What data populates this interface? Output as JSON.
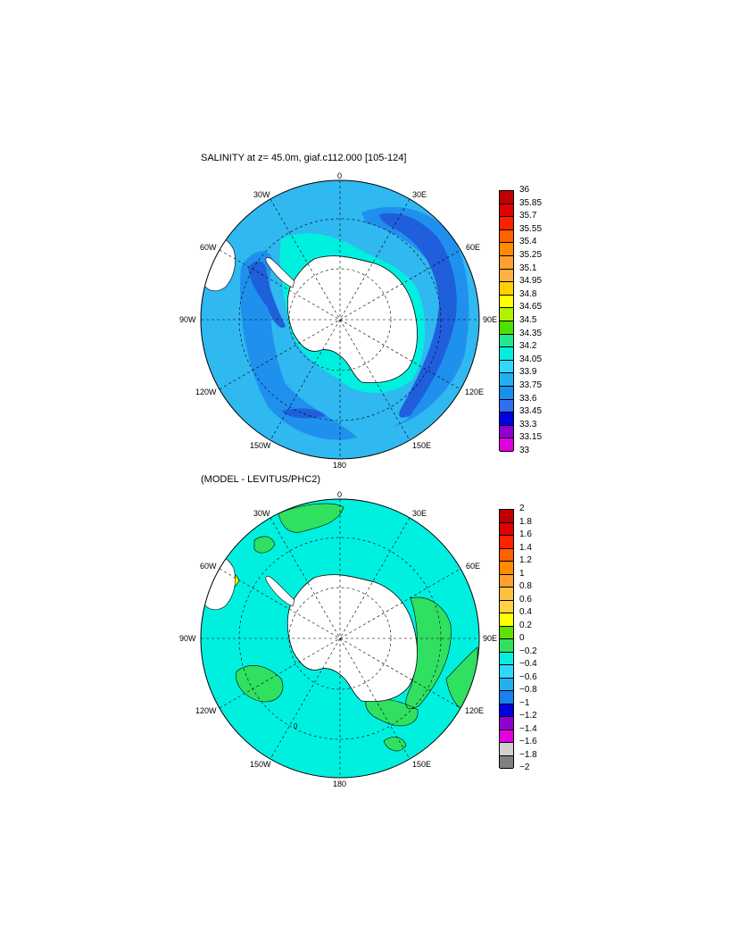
{
  "top_panel": {
    "title": "SALINITY at z=  45.0m, giaf.c112.000 [105-124]",
    "lon_labels": [
      "0",
      "30E",
      "60E",
      "90E",
      "120E",
      "150E",
      "180",
      "150W",
      "120W",
      "90W",
      "60W",
      "30W"
    ],
    "colorbar_labels": [
      "36",
      "35.85",
      "35.7",
      "35.55",
      "35.4",
      "35.25",
      "35.1",
      "34.95",
      "34.8",
      "34.65",
      "34.5",
      "34.35",
      "34.2",
      "34.05",
      "33.9",
      "33.75",
      "33.6",
      "33.45",
      "33.3",
      "33.15",
      "33"
    ],
    "colorbar_colors": [
      "#c00000",
      "#e00000",
      "#ff2000",
      "#ff6000",
      "#ff8c00",
      "#ffa030",
      "#ffb040",
      "#ffd000",
      "#ffff00",
      "#b0f000",
      "#50e000",
      "#20e890",
      "#00f0e0",
      "#30d8f8",
      "#20b0f0",
      "#1890f0",
      "#3070f0",
      "#0000e0",
      "#9000d0",
      "#e000e0",
      "#d0d0d0",
      "#808080"
    ],
    "ocean_color": "#30b8f0",
    "zone_color": "#2090ee",
    "deep_color": "#1f5fdc",
    "shelf_color": "#00f0e0"
  },
  "bottom_panel": {
    "title": "(MODEL - LEVITUS/PHC2)",
    "lon_labels": [
      "0",
      "30E",
      "60E",
      "90E",
      "120E",
      "150E",
      "180",
      "150W",
      "120W",
      "90W",
      "60W",
      "30W"
    ],
    "contour_label": "0",
    "colorbar_labels": [
      "2",
      "1.8",
      "1.6",
      "1.4",
      "1.2",
      "1",
      "0.8",
      "0.6",
      "0.4",
      "0.2",
      "0",
      "−0.2",
      "−0.4",
      "−0.6",
      "−0.8",
      "−1",
      "−1.2",
      "−1.4",
      "−1.6",
      "−1.8",
      "−2"
    ],
    "colorbar_colors": [
      "#c00000",
      "#e00000",
      "#ff2000",
      "#ff6000",
      "#ff8c00",
      "#ffa030",
      "#ffc040",
      "#ffd040",
      "#ffff00",
      "#60e000",
      "#30e060",
      "#00f0e0",
      "#30d8f8",
      "#20b0f0",
      "#1880f0",
      "#0000e0",
      "#9000d0",
      "#e000e0",
      "#d0d0d0",
      "#808080"
    ],
    "ocean_color": "#00f0e0",
    "anom_color": "#30e060"
  }
}
